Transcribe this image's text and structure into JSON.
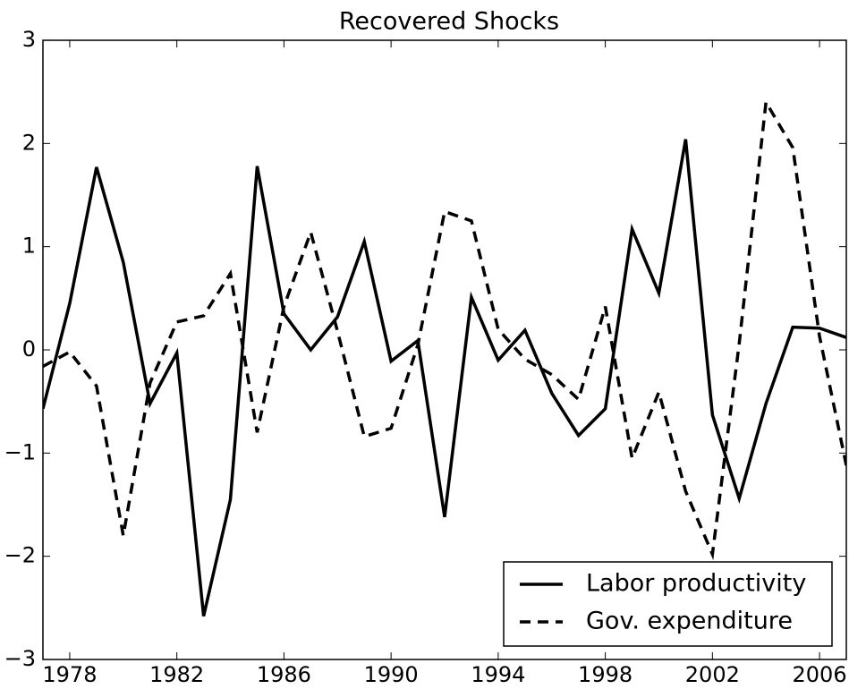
{
  "chart_data": {
    "type": "line",
    "title": "Recovered Shocks",
    "x": [
      1977,
      1978,
      1979,
      1980,
      1981,
      1982,
      1983,
      1984,
      1985,
      1986,
      1987,
      1988,
      1989,
      1990,
      1991,
      1992,
      1993,
      1994,
      1995,
      1996,
      1997,
      1998,
      1999,
      2000,
      2001,
      2002,
      2003,
      2004,
      2005,
      2006,
      2007
    ],
    "series": [
      {
        "name": "Labor productivity",
        "color": "#000000",
        "linestyle": "solid",
        "values": [
          -0.57,
          0.45,
          1.77,
          0.85,
          -0.52,
          -0.03,
          -2.58,
          -1.45,
          1.78,
          0.35,
          0.0,
          0.32,
          1.05,
          -0.11,
          0.09,
          -1.62,
          0.51,
          -0.1,
          0.19,
          -0.42,
          -0.83,
          -0.57,
          1.17,
          0.55,
          2.04,
          -0.63,
          -1.44,
          -0.52,
          0.22,
          0.21,
          0.12
        ]
      },
      {
        "name": "Gov. expenditure",
        "color": "#000000",
        "linestyle": "dashed",
        "values": [
          -0.16,
          -0.02,
          -0.35,
          -1.8,
          -0.32,
          0.27,
          0.33,
          0.74,
          -0.8,
          0.42,
          1.14,
          0.18,
          -0.84,
          -0.76,
          0.05,
          1.34,
          1.25,
          0.2,
          -0.09,
          -0.24,
          -0.48,
          0.42,
          -1.05,
          -0.41,
          -1.37,
          -1.98,
          0.06,
          2.4,
          1.96,
          0.13,
          -1.12
        ]
      }
    ],
    "xlim": [
      1977,
      2007
    ],
    "xticks": [
      1978,
      1982,
      1986,
      1990,
      1994,
      1998,
      2002,
      2006
    ],
    "ylim": [
      -3,
      3
    ],
    "yticks": [
      {
        "value": -3,
        "label": "−3"
      },
      {
        "value": -2,
        "label": "−2"
      },
      {
        "value": -1,
        "label": "−1"
      },
      0,
      1,
      2,
      3
    ],
    "grid": false,
    "legend": "lower right"
  }
}
